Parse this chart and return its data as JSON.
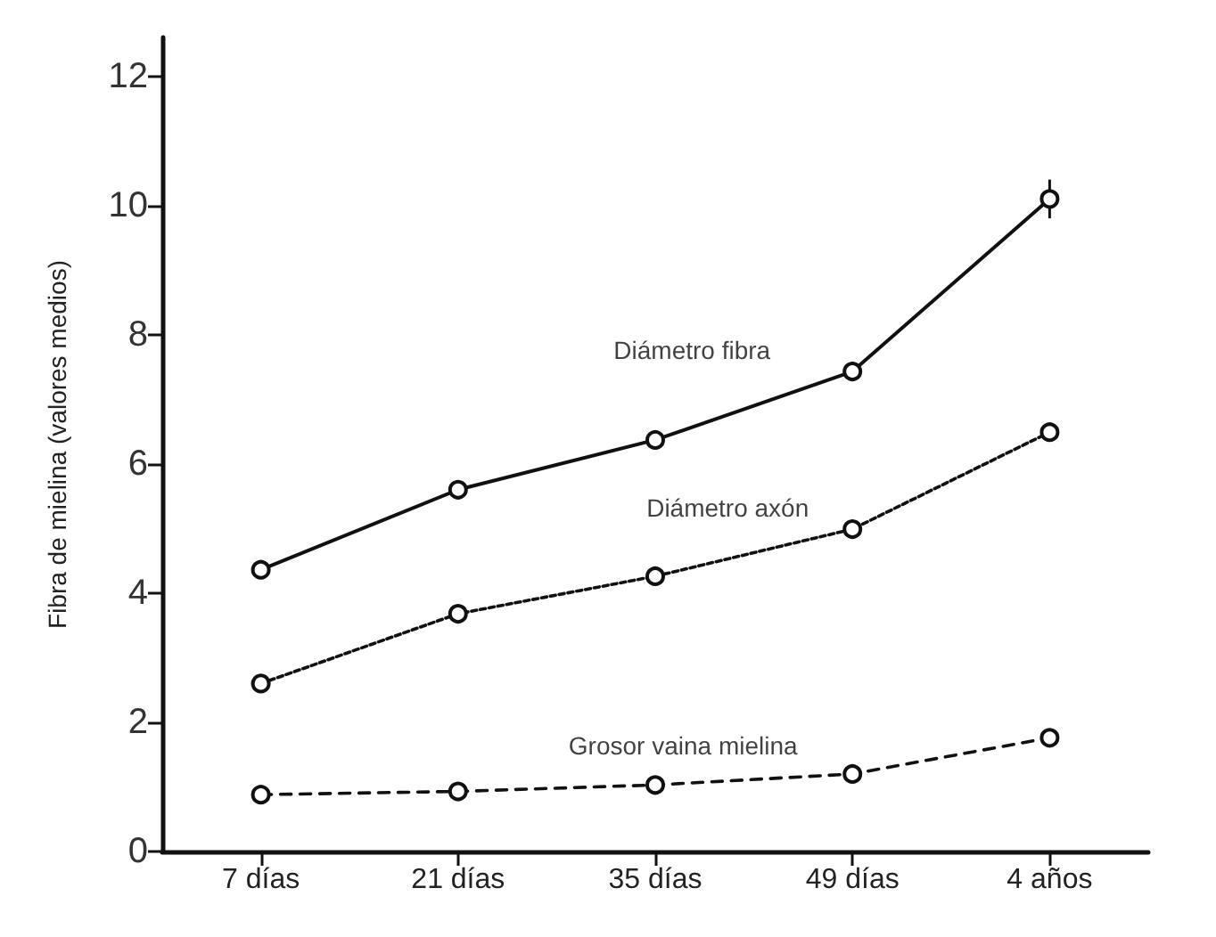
{
  "chart_data": {
    "type": "line",
    "ylabel": "Fibra de mielina (valores medios)",
    "categories": [
      "7 días",
      "21 días",
      "35 días",
      "49 días",
      "4 años"
    ],
    "series": [
      {
        "name": "Diámetro fibra",
        "color": "#111111",
        "line_style": "solid",
        "values": [
          4.36,
          5.6,
          6.37,
          7.43,
          10.1
        ],
        "errors": [
          null,
          null,
          null,
          0.15,
          0.3
        ]
      },
      {
        "name": "Diámetro axón",
        "color": "#111111",
        "line_style": "dotted",
        "values": [
          2.6,
          3.68,
          4.26,
          4.99,
          6.49
        ]
      },
      {
        "name": "Grosor vaina mielina",
        "color": "#111111",
        "line_style": "dashed",
        "values": [
          0.88,
          0.93,
          1.03,
          1.2,
          1.76
        ]
      }
    ],
    "ylim": [
      0,
      12.6
    ],
    "yticks": [
      0,
      2,
      4,
      6,
      8,
      10,
      12
    ],
    "grid": false,
    "legend": false,
    "marker": "circle"
  }
}
